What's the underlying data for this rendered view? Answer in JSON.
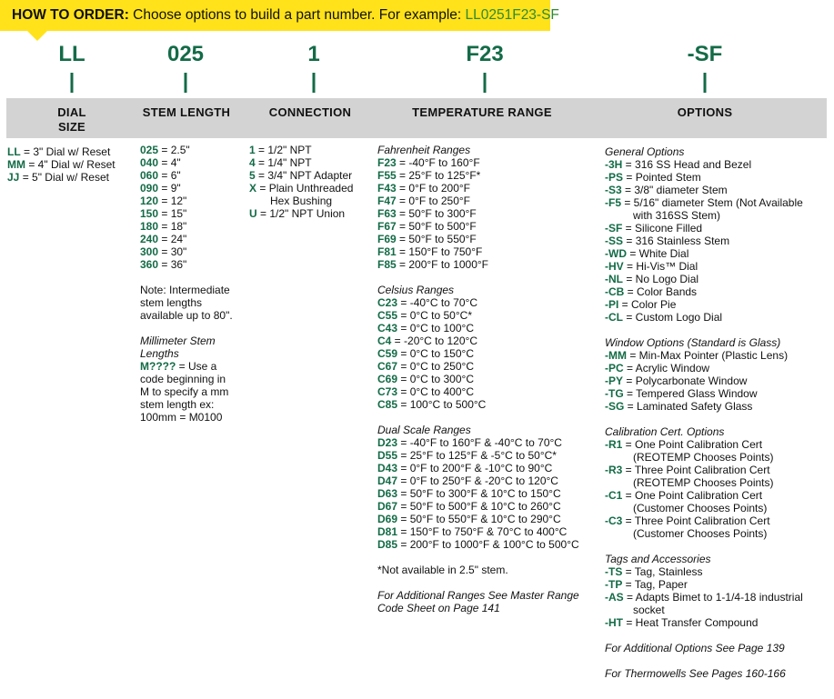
{
  "banner": {
    "label": "HOW TO ORDER:",
    "text": " Choose options to build a part number. For example: ",
    "example": "LL0251F23-SF"
  },
  "codes": [
    "LL",
    "025",
    "1",
    "F23",
    "-SF"
  ],
  "headers": {
    "dial_1": "DIAL",
    "dial_2": "SIZE",
    "stem": "STEM LENGTH",
    "connection": "CONNECTION",
    "temperature": "TEMPERATURE RANGE",
    "options": "OPTIONS"
  },
  "columns": {
    "dial": [
      {
        "items": [
          {
            "code": "LL",
            "text": " = 3\" Dial w/ Reset"
          },
          {
            "code": "MM",
            "text": " = 4\" Dial w/ Reset"
          },
          {
            "code": "JJ",
            "text": " = 5\" Dial w/ Reset"
          }
        ]
      }
    ],
    "stem": [
      {
        "items": [
          {
            "code": "025",
            "text": " = 2.5\""
          },
          {
            "code": "040",
            "text": " = 4\""
          },
          {
            "code": "060",
            "text": " = 6\""
          },
          {
            "code": "090",
            "text": " = 9\""
          },
          {
            "code": "120",
            "text": " = 12\""
          },
          {
            "code": "150",
            "text": " = 15\""
          },
          {
            "code": "180",
            "text": " = 18\""
          },
          {
            "code": "240",
            "text": " = 24\""
          },
          {
            "code": "300",
            "text": " = 30\""
          },
          {
            "code": "360",
            "text": " = 36\""
          }
        ]
      },
      {
        "items": [
          {
            "text": "Note: Intermediate"
          },
          {
            "text": "stem lengths"
          },
          {
            "text": "available up to 80\"."
          }
        ]
      },
      {
        "title": "Millimeter Stem",
        "title2": "Lengths",
        "items": [
          {
            "code": "M????",
            "text": " = Use a"
          },
          {
            "text": "code beginning in"
          },
          {
            "text": "M to specify a mm"
          },
          {
            "text": "stem length ex:"
          },
          {
            "text": "100mm = M0100"
          }
        ]
      }
    ],
    "connection": [
      {
        "items": [
          {
            "code": "1",
            "text": " = 1/2\" NPT"
          },
          {
            "code": "4",
            "text": " = 1/4\" NPT"
          },
          {
            "code": "5",
            "text": " = 3/4\" NPT Adapter"
          },
          {
            "code": "X",
            "text": " = Plain Unthreaded",
            "cont": "Hex Bushing"
          },
          {
            "code": "U",
            "text": " = 1/2\" NPT Union"
          }
        ]
      }
    ],
    "temperature": [
      {
        "title": "Fahrenheit Ranges",
        "items": [
          {
            "code": "F23",
            "text": " = -40°F to 160°F"
          },
          {
            "code": "F55",
            "text": " = 25°F to 125°F*"
          },
          {
            "code": "F43",
            "text": " = 0°F to 200°F"
          },
          {
            "code": "F47",
            "text": " = 0°F to 250°F"
          },
          {
            "code": "F63",
            "text": " = 50°F to 300°F"
          },
          {
            "code": "F67",
            "text": " = 50°F to 500°F"
          },
          {
            "code": "F69",
            "text": " = 50°F to 550°F"
          },
          {
            "code": "F81",
            "text": " = 150°F to 750°F"
          },
          {
            "code": "F85",
            "text": " = 200°F to 1000°F"
          }
        ]
      },
      {
        "title": "Celsius Ranges",
        "items": [
          {
            "code": "C23",
            "text": " = -40°C to 70°C"
          },
          {
            "code": "C55",
            "text": " = 0°C to 50°C*"
          },
          {
            "code": "C43",
            "text": " = 0°C to 100°C"
          },
          {
            "code": "C4",
            "text": " = -20°C to 120°C"
          },
          {
            "code": "C59",
            "text": " = 0°C to 150°C"
          },
          {
            "code": "C67",
            "text": " = 0°C to 250°C"
          },
          {
            "code": "C69",
            "text": " = 0°C to 300°C"
          },
          {
            "code": "C73",
            "text": " = 0°C to 400°C"
          },
          {
            "code": "C85",
            "text": " = 100°C to 500°C"
          }
        ]
      },
      {
        "title": "Dual Scale Ranges",
        "items": [
          {
            "code": "D23",
            "text": " = -40°F to 160°F & -40°C to 70°C"
          },
          {
            "code": "D55",
            "text": " = 25°F to 125°F & -5°C to 50°C*"
          },
          {
            "code": "D43",
            "text": " = 0°F to 200°F & -10°C to 90°C"
          },
          {
            "code": "D47",
            "text": " = 0°F to 250°F & -20°C to 120°C"
          },
          {
            "code": "D63",
            "text": " = 50°F to 300°F & 10°C to 150°C"
          },
          {
            "code": "D67",
            "text": " = 50°F to 500°F & 10°C to 260°C"
          },
          {
            "code": "D69",
            "text": " = 50°F to 550°F  & 10°C to 290°C"
          },
          {
            "code": "D81",
            "text": " = 150°F to 750°F & 70°C to 400°C"
          },
          {
            "code": "D85",
            "text": " = 200°F to 1000°F & 100°C to 500°C"
          }
        ]
      },
      {
        "items": [
          {
            "text": "*Not available in 2.5\" stem."
          }
        ]
      },
      {
        "italic": true,
        "items": [
          {
            "text": "For Additional Ranges See Master Range"
          },
          {
            "text": "Code Sheet on Page 141"
          }
        ]
      }
    ],
    "options": [
      {
        "title": "General Options",
        "items": [
          {
            "code": "-3H",
            "text": " = 316 SS Head and Bezel"
          },
          {
            "code": "-PS",
            "text": " = Pointed Stem"
          },
          {
            "code": "-S3",
            "text": " = 3/8\" diameter Stem"
          },
          {
            "code": "-F5",
            "text": " = 5/16\" diameter  Stem (Not Available",
            "cont": "with 316SS Stem)"
          },
          {
            "code": "-SF",
            "text": " = Silicone Filled"
          },
          {
            "code": "-SS",
            "text": " = 316 Stainless Stem"
          },
          {
            "code": "-WD",
            "text": " = White Dial"
          },
          {
            "code": "-HV",
            "text": " = Hi-Vis™ Dial"
          },
          {
            "code": "-NL",
            "text": " = No Logo Dial"
          },
          {
            "code": "-CB",
            "text": " = Color Bands"
          },
          {
            "code": "-PI",
            "text": " = Color Pie"
          },
          {
            "code": "-CL",
            "text": " = Custom Logo Dial"
          }
        ]
      },
      {
        "title": "Window Options (Standard is Glass)",
        "items": [
          {
            "code": "-MM",
            "text": " = Min-Max Pointer (Plastic Lens)"
          },
          {
            "code": "-PC",
            "text": " = Acrylic Window"
          },
          {
            "code": "-PY",
            "text": " = Polycarbonate Window"
          },
          {
            "code": "-TG",
            "text": " = Tempered Glass Window"
          },
          {
            "code": "-SG",
            "text": " = Laminated Safety Glass"
          }
        ]
      },
      {
        "title": "Calibration Cert. Options",
        "items": [
          {
            "code": "-R1",
            "text": " = One Point Calibration Cert",
            "cont": "(REOTEMP Chooses Points)"
          },
          {
            "code": "-R3",
            "text": " = Three Point Calibration Cert",
            "cont": "(REOTEMP Chooses Points)"
          },
          {
            "code": "-C1",
            "text": " = One Point Calibration Cert",
            "cont": "(Customer Chooses Points)"
          },
          {
            "code": "-C3",
            "text": " = Three Point Calibration Cert",
            "cont": "(Customer Chooses Points)"
          }
        ]
      },
      {
        "title": "Tags and Accessories",
        "items": [
          {
            "code": "-TS",
            "text": " = Tag, Stainless"
          },
          {
            "code": "-TP",
            "text": " = Tag, Paper"
          },
          {
            "code": "-AS",
            "text": " = Adapts Bimet to 1-1/4-18 industrial",
            "cont": "socket"
          },
          {
            "code": "-HT",
            "text": " = Heat Transfer Compound"
          }
        ]
      },
      {
        "italic": true,
        "items": [
          {
            "text": "For Additional Options See Page 139"
          }
        ]
      },
      {
        "italic": true,
        "items": [
          {
            "text": "For Thermowells See Pages 160-166"
          }
        ]
      }
    ]
  },
  "colors": {
    "banner": "#ffe21a",
    "code_green": "#136b47",
    "bar_gray": "#d3d3d3",
    "example_green": "#2f8a2f"
  }
}
